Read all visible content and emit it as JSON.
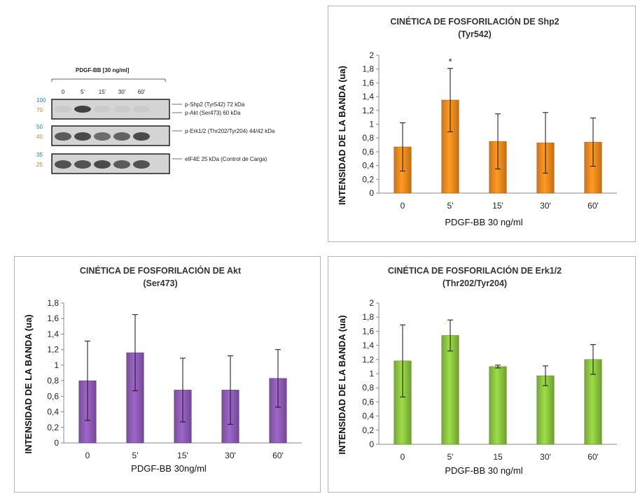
{
  "western_blot": {
    "treatment_label": "PDGF-BB [30 ng/ml]",
    "lanes": [
      "0",
      "5'",
      "15'",
      "30'",
      "60'"
    ],
    "rows": [
      {
        "mw_top": "100",
        "mw_bottom": "70",
        "labels": [
          "p-Shp2 (Tyr542) 72 kDa",
          "p-Akt (Ser473) 60 kDa"
        ],
        "intensities": [
          0.05,
          0.85,
          0.05,
          0.05,
          0.05
        ]
      },
      {
        "mw_top": "50",
        "mw_bottom": "40",
        "labels": [
          "p-Erk1/2 (Thr202/Tyr204) 44/42 kDa"
        ],
        "intensities": [
          0.7,
          0.8,
          0.6,
          0.65,
          0.8
        ]
      },
      {
        "mw_top": "35",
        "mw_bottom": "25",
        "labels": [
          "eIF4E 25 kDa (Control de Carga)"
        ],
        "intensities": [
          0.75,
          0.75,
          0.8,
          0.7,
          0.75
        ]
      }
    ]
  },
  "chart_data": [
    {
      "id": "shp2",
      "type": "bar",
      "title": "CINÉTICA DE FOSFORILACIÓN DE Shp2",
      "subtitle": "(Tyr542)",
      "xlabel": "PDGF-BB 30 ng/ml",
      "ylabel": "INTENSIDAD DE LA BANDA (ua)",
      "categories": [
        "0",
        "5'",
        "15'",
        "30'",
        "60'"
      ],
      "values": [
        0.67,
        1.35,
        0.75,
        0.73,
        0.74
      ],
      "errors": [
        0.35,
        0.46,
        0.4,
        0.44,
        0.35
      ],
      "annotations": [
        "",
        "*",
        "",
        "",
        ""
      ],
      "ylim": [
        0,
        2
      ],
      "yticks": [
        "0",
        "0,2",
        "0,4",
        "0,6",
        "0,8",
        "1",
        "1,2",
        "1,4",
        "1,6",
        "1,8",
        "2"
      ],
      "color": "#f28a1e"
    },
    {
      "id": "akt",
      "type": "bar",
      "title": "CINÉTICA DE FOSFORILACIÓN DE Akt",
      "subtitle": "(Ser473)",
      "xlabel": "PDGF-BB 30ng/ml",
      "ylabel": "INTENSIDAD DE LA BANDA (ua)",
      "categories": [
        "0",
        "5'",
        "15'",
        "30'",
        "60'"
      ],
      "values": [
        0.8,
        1.16,
        0.68,
        0.68,
        0.83
      ],
      "errors": [
        0.51,
        0.49,
        0.41,
        0.44,
        0.37
      ],
      "annotations": [
        "",
        "",
        "",
        "",
        ""
      ],
      "ylim": [
        0,
        1.8
      ],
      "yticks": [
        "0",
        "0,2",
        "0,4",
        "0,6",
        "0,8",
        "1",
        "1,2",
        "1,4",
        "1,6",
        "1,8"
      ],
      "color": "#8e5bb5"
    },
    {
      "id": "erk",
      "type": "bar",
      "title": "CINÉTICA DE FOSFORILACIÓN DE Erk1/2",
      "subtitle": "(Thr202/Tyr204)",
      "xlabel": "PDGF-BB 30 ng/ml",
      "ylabel": "INTENSIDAD DE LA BANDA (ua)",
      "categories": [
        "0",
        "5'",
        "15",
        "30'",
        "60'"
      ],
      "values": [
        1.18,
        1.54,
        1.1,
        0.97,
        1.2
      ],
      "errors": [
        0.51,
        0.22,
        0.02,
        0.14,
        0.21
      ],
      "annotations": [
        "",
        "",
        "",
        "",
        ""
      ],
      "ylim": [
        0,
        2
      ],
      "yticks": [
        "0",
        "0,2",
        "0,4",
        "0,6",
        "0,8",
        "1",
        "1,2",
        "1,4",
        "1,6",
        "1,8",
        "2"
      ],
      "color": "#8cc63f"
    }
  ]
}
